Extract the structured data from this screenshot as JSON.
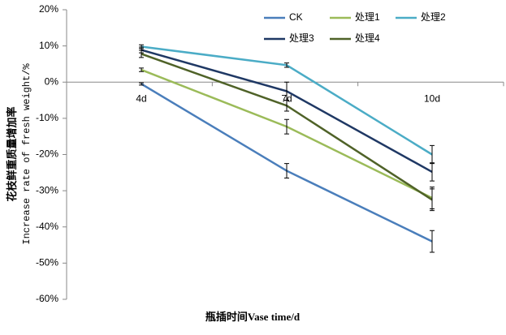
{
  "chart_data": {
    "type": "line",
    "categories": [
      "4d",
      "7d",
      "10d"
    ],
    "x_label": "瓶插时间Vase time/d",
    "y_label": [
      "花枝鲜重质量增加率",
      "Increase rate of fresh weight/%"
    ],
    "ylim": [
      -60,
      20
    ],
    "yticks": [
      {
        "value": -60,
        "label": "-60%"
      },
      {
        "value": -50,
        "label": "-50%"
      },
      {
        "value": -40,
        "label": "-40%"
      },
      {
        "value": -30,
        "label": "-30%"
      },
      {
        "value": -20,
        "label": "-20%"
      },
      {
        "value": -10,
        "label": "-10%"
      },
      {
        "value": 0,
        "label": "0%"
      },
      {
        "value": 10,
        "label": "10%"
      },
      {
        "value": 20,
        "label": "20%"
      }
    ],
    "grid": false,
    "series": [
      {
        "name": "CK",
        "color": "#4a7ebb",
        "values": [
          -0.5,
          -24.5,
          -44
        ],
        "errors": [
          0.3,
          2,
          3
        ]
      },
      {
        "name": "处理1",
        "color": "#9bbb59",
        "values": [
          3.4,
          -12.3,
          -32
        ],
        "errors": [
          0.5,
          2,
          3
        ]
      },
      {
        "name": "处理2",
        "color": "#4bacc6",
        "values": [
          9.8,
          4.7,
          -20
        ],
        "errors": [
          0.5,
          0.6,
          2.5
        ]
      },
      {
        "name": "处理3",
        "color": "#1f3864",
        "values": [
          8.9,
          -2.5,
          -24.8
        ],
        "errors": [
          0.8,
          2.5,
          2.5
        ]
      },
      {
        "name": "处理4",
        "color": "#4f6228",
        "values": [
          7.8,
          -6.5,
          -32.5
        ],
        "errors": [
          1,
          1.5,
          3
        ]
      }
    ]
  }
}
